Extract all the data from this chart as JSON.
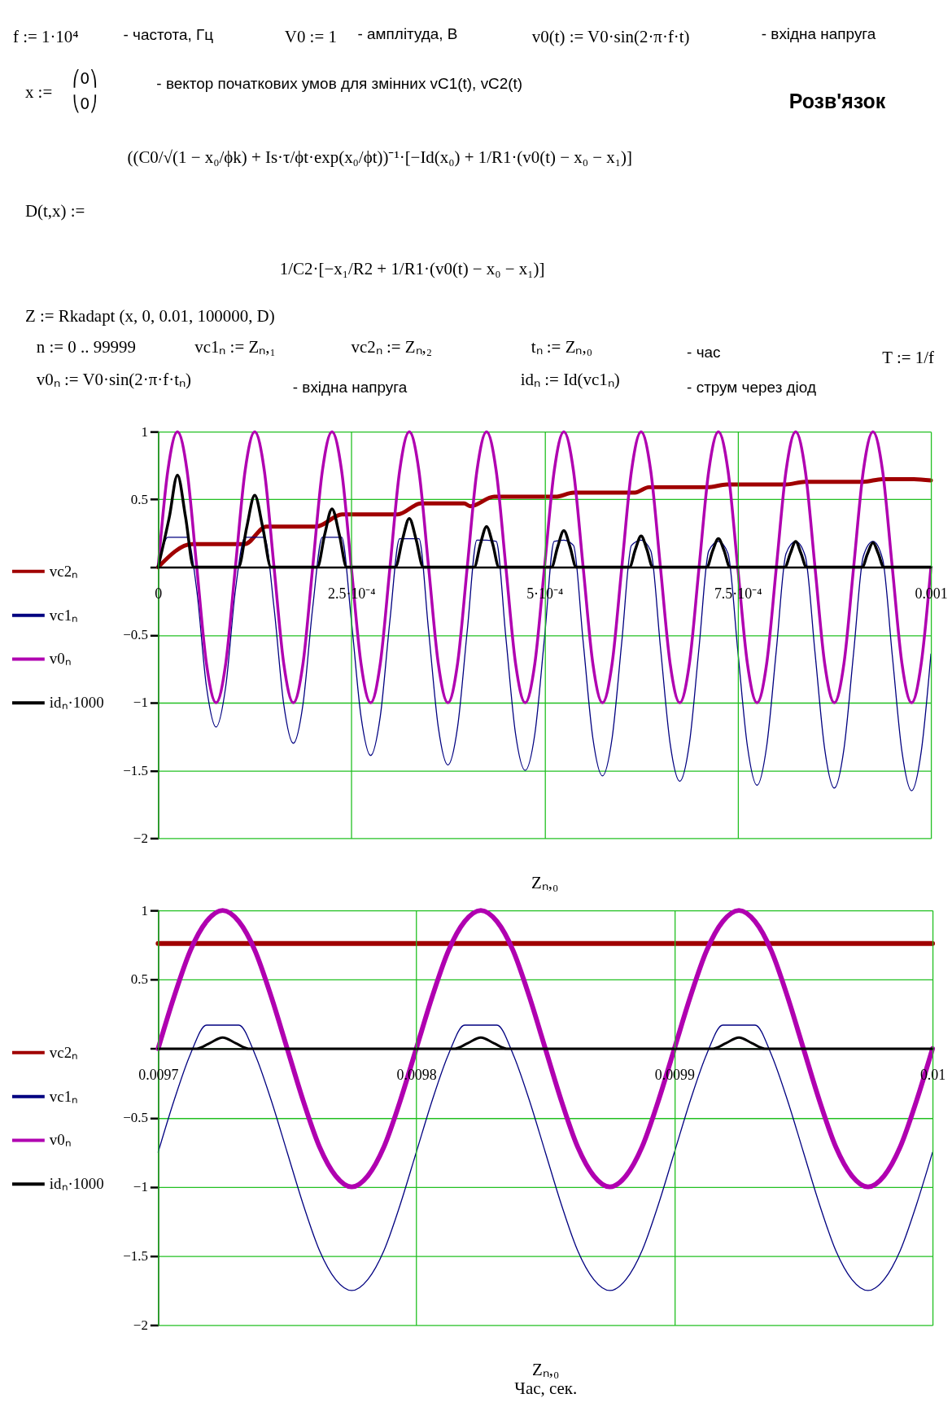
{
  "chart_data": [
    {
      "type": "line",
      "annotations": [
        "f := 1·10⁴",
        "- частота, Гц",
        "V0 := 1",
        "- амплітуда, В",
        "v0(t) := V0·sin(2·π·f·t)",
        "- вхідна напруга",
        "x :=",
        "⎛0⎞",
        "⎝0⎠",
        "- вектор початкових умов для змінних vC1(t), vC2(t)",
        "Розв'язок",
        "D(t,x) :=",
        "((C0/√(1 − x₀/ϕk) + Is·τ/ϕt·exp(x₀/ϕt))⁻¹·[−Id(x₀) + 1/R1·(v0(t) − x₀ − x₁)]",
        "1/C2·[−x₁/R2 + 1/R1·(v0(t) − x₀ − x₁)]",
        "Z := Rkadapt (x, 0, 0.01, 100000, D)",
        "n := 0 .. 99999",
        "vc1ₙ := Zₙ,₁",
        "vc2ₙ := Zₙ,₂",
        "tₙ := Zₙ,₀",
        "- час",
        "T := 1/f",
        "v0ₙ := V0·sin(2·π·f·tₙ)",
        "- вхідна напруга",
        "idₙ := Id(vc1ₙ)",
        "- струм через діод"
      ],
      "xlabel": "Zₙ,₀",
      "x": [
        0,
        1.25e-05,
        2.5e-05,
        3.75e-05,
        5e-05,
        6.25e-05,
        7.5e-05,
        8.75e-05,
        0.0001,
        0.0001125,
        0.000125,
        0.0001375,
        0.00015,
        0.0001625,
        0.000175,
        0.0001875,
        0.0002,
        0.0002125,
        0.000225,
        0.0002375,
        0.00025,
        0.0002625,
        0.000275,
        0.0002875,
        0.0003,
        0.0003125,
        0.000325,
        0.0003375,
        0.00035,
        0.0003625,
        0.000375,
        0.0003875,
        0.0004,
        0.0004125,
        0.000425,
        0.0004375,
        0.00045,
        0.0004625,
        0.000475,
        0.0004875,
        0.0005,
        0.0005125,
        0.000525,
        0.0005375,
        0.00055,
        0.0005625,
        0.000575,
        0.0005875,
        0.0006,
        0.0006125,
        0.000625,
        0.0006375,
        0.00065,
        0.0006625,
        0.000675,
        0.0006875,
        0.0007,
        0.0007125,
        0.000725,
        0.0007375,
        0.00075,
        0.0007625,
        0.000775,
        0.0007875,
        0.0008,
        0.0008125,
        0.000825,
        0.0008375,
        0.00085,
        0.0008625,
        0.000875,
        0.0008875,
        0.0009,
        0.0009125,
        0.000925,
        0.0009375,
        0.00095,
        0.0009625,
        0.000975,
        0.0009875,
        0.001
      ],
      "series": [
        {
          "name": "vc2ₙ",
          "color": "#a00000",
          "x": [
            0,
            4.4e-05,
            0.000112,
            0.00014,
            0.000205,
            0.000238,
            0.00031,
            0.00034,
            0.000396,
            0.000404,
            0.000435,
            0.000514,
            0.000538,
            0.000617,
            0.000635,
            0.000711,
            0.000736,
            0.000812,
            0.000837,
            0.000913,
            0.000937,
            0.000978,
            0.001
          ],
          "values": [
            0,
            0.17,
            0.17,
            0.3,
            0.3,
            0.39,
            0.39,
            0.47,
            0.47,
            0.45,
            0.52,
            0.52,
            0.55,
            0.55,
            0.59,
            0.59,
            0.61,
            0.61,
            0.63,
            0.63,
            0.65,
            0.65,
            0.64
          ]
        },
        {
          "name": "vc1ₙ",
          "color": "#000080",
          "values": [
            0,
            0.22,
            0.22,
            0.22,
            -0.17,
            -0.88,
            -1.18,
            -0.88,
            -0.17,
            0.22,
            0.22,
            0.22,
            -0.3,
            -1.01,
            -1.3,
            -1.01,
            -0.3,
            0.22,
            0.22,
            0.22,
            -0.39,
            -1.1,
            -1.39,
            -1.1,
            -0.39,
            0.21,
            0.21,
            0.21,
            -0.47,
            -1.18,
            -1.46,
            -1.18,
            -0.47,
            0.2,
            0.2,
            0.19,
            -0.52,
            -1.23,
            -1.5,
            -1.23,
            -0.52,
            0.19,
            0.2,
            0.16,
            -0.55,
            -1.26,
            -1.54,
            -1.26,
            -0.55,
            0.16,
            0.2,
            0.12,
            -0.59,
            -1.3,
            -1.58,
            -1.3,
            -0.59,
            0.12,
            0.19,
            0.1,
            -0.61,
            -1.32,
            -1.61,
            -1.32,
            -0.61,
            0.1,
            0.19,
            0.08,
            -0.63,
            -1.34,
            -1.63,
            -1.34,
            -0.63,
            0.08,
            0.19,
            0.06,
            -0.65,
            -1.36,
            -1.65,
            -1.36,
            -0.64
          ]
        },
        {
          "name": "v0ₙ",
          "color": "#b000b0",
          "values": [
            0,
            0.71,
            1,
            0.71,
            0,
            -0.71,
            -1,
            -0.71,
            0,
            0.71,
            1,
            0.71,
            0,
            -0.71,
            -1,
            -0.71,
            0,
            0.71,
            1,
            0.71,
            0,
            -0.71,
            -1,
            -0.71,
            0,
            0.71,
            1,
            0.71,
            0,
            -0.71,
            -1,
            -0.71,
            0,
            0.71,
            1,
            0.71,
            0,
            -0.71,
            -1,
            -0.71,
            0,
            0.71,
            1,
            0.71,
            0,
            -0.71,
            -1,
            -0.71,
            0,
            0.71,
            1,
            0.71,
            0,
            -0.71,
            -1,
            -0.71,
            0,
            0.71,
            1,
            0.71,
            0,
            -0.71,
            -1,
            -0.71,
            0,
            0.71,
            1,
            0.71,
            0,
            -0.71,
            -1,
            -0.71,
            0,
            0.71,
            1,
            0.71,
            0,
            -0.71,
            -1,
            -0.71,
            0
          ]
        },
        {
          "name": "idₙ·1000",
          "color": "#000000",
          "x": [
            0,
            1.45e-05,
            2.5e-05,
            3.55e-05,
            4.6e-05,
            0.000104,
            0.0001145,
            0.000125,
            0.0001355,
            0.000146,
            0.000206,
            0.0002155,
            0.000225,
            0.0002345,
            0.000244,
            0.000307,
            0.000316,
            0.000325,
            0.000334,
            0.000343,
            0.000409,
            0.000417,
            0.000425,
            0.000433,
            0.000441,
            0.000509,
            0.000517,
            0.000525,
            0.000533,
            0.000541,
            0.00061,
            0.0006175,
            0.000625,
            0.0006325,
            0.00064,
            0.00071,
            0.0007175,
            0.000725,
            0.0007325,
            0.00074,
            0.000811,
            0.000818,
            0.000825,
            0.000832,
            0.000839,
            0.000911,
            0.000918,
            0.000925,
            0.000932,
            0.000939,
            0.001
          ],
          "values": [
            0,
            0.37,
            0.68,
            0.37,
            0,
            0,
            0.29,
            0.53,
            0.29,
            0,
            0,
            0.24,
            0.43,
            0.24,
            0,
            0,
            0.2,
            0.36,
            0.2,
            0,
            0,
            0.17,
            0.3,
            0.17,
            0,
            0,
            0.15,
            0.27,
            0.15,
            0,
            0,
            0.13,
            0.23,
            0.13,
            0,
            0,
            0.12,
            0.21,
            0.12,
            0,
            0,
            0.1,
            0.19,
            0.1,
            0,
            0,
            0.1,
            0.18,
            0.1,
            0,
            0
          ]
        }
      ],
      "xlim": [
        0,
        0.001
      ],
      "ylim": [
        -2,
        1
      ],
      "xticks": [
        0,
        {
          "value": 0.00025,
          "label": "2.5·10⁻⁴"
        },
        {
          "value": 0.0005,
          "label": "5·10⁻⁴"
        },
        {
          "value": 0.00075,
          "label": "7.5·10⁻⁴"
        },
        0.001
      ],
      "yticks": [
        -2,
        -1.5,
        -1,
        -0.5,
        {
          "value": 0,
          "label": null
        },
        0.5,
        1
      ],
      "grid": true,
      "legend": "left"
    },
    {
      "type": "line",
      "xlabel": "Zₙ,₀\nЧас, сек.",
      "x": [
        0.0097,
        0.00970625,
        0.0097125,
        0.00971875,
        0.009725,
        0.00973125,
        0.0097375,
        0.00974375,
        0.00975,
        0.00975625,
        0.0097625,
        0.00976875,
        0.009775,
        0.00978125,
        0.0097875,
        0.00979375,
        0.0098,
        0.00980625,
        0.0098125,
        0.00981875,
        0.009825,
        0.00983125,
        0.0098375,
        0.00984375,
        0.00985,
        0.00985625,
        0.0098625,
        0.00986875,
        0.009875,
        0.00988125,
        0.0098875,
        0.00989375,
        0.0099,
        0.00990625,
        0.0099125,
        0.00991875,
        0.009925,
        0.00993125,
        0.0099375,
        0.00994375,
        0.00995,
        0.00995625,
        0.0099625,
        0.00996875,
        0.009975,
        0.00998125,
        0.0099875,
        0.00999375,
        0.01
      ],
      "series": [
        {
          "name": "vc2ₙ",
          "color": "#a00000",
          "x": [
            0.0097,
            0.01
          ],
          "values": [
            0.76,
            0.76
          ]
        },
        {
          "name": "vc1ₙ",
          "color": "#000080",
          "values": [
            -0.75,
            -0.37,
            -0.04,
            0.17,
            0.17,
            0.17,
            -0.04,
            -0.37,
            -0.75,
            -1.13,
            -1.46,
            -1.67,
            -1.75,
            -1.67,
            -1.46,
            -1.13,
            -0.75,
            -0.37,
            -0.04,
            0.17,
            0.17,
            0.17,
            -0.04,
            -0.37,
            -0.75,
            -1.13,
            -1.46,
            -1.67,
            -1.75,
            -1.67,
            -1.46,
            -1.13,
            -0.75,
            -0.37,
            -0.04,
            0.17,
            0.17,
            0.17,
            -0.04,
            -0.37,
            -0.75,
            -1.13,
            -1.46,
            -1.67,
            -1.75,
            -1.67,
            -1.46,
            -1.13,
            -0.75
          ]
        },
        {
          "name": "v0ₙ",
          "color": "#b000b0",
          "values": [
            0,
            0.38,
            0.71,
            0.92,
            1,
            0.92,
            0.71,
            0.38,
            0,
            -0.38,
            -0.71,
            -0.92,
            -1,
            -0.92,
            -0.71,
            -0.38,
            0,
            0.38,
            0.71,
            0.92,
            1,
            0.92,
            0.71,
            0.38,
            0,
            -0.38,
            -0.71,
            -0.92,
            -1,
            -0.92,
            -0.71,
            -0.38,
            0,
            0.38,
            0.71,
            0.92,
            1,
            0.92,
            0.71,
            0.38,
            0,
            -0.38,
            -0.71,
            -0.92,
            -1,
            -0.92,
            -0.71,
            -0.38,
            0
          ]
        },
        {
          "name": "idₙ·1000",
          "color": "#000000",
          "x": [
            0.0097,
            0.009715,
            0.00972,
            0.009725,
            0.00973,
            0.009735,
            0.009815,
            0.00982,
            0.009825,
            0.00983,
            0.009835,
            0.009915,
            0.00992,
            0.009925,
            0.00993,
            0.009935,
            0.01
          ],
          "values": [
            0,
            0,
            0.04,
            0.08,
            0.04,
            0,
            0,
            0.04,
            0.08,
            0.04,
            0,
            0,
            0.04,
            0.08,
            0.04,
            0,
            0
          ]
        }
      ],
      "xlim": [
        0.0097,
        0.01
      ],
      "ylim": [
        -2,
        1
      ],
      "xticks": [
        0.0097,
        0.0098,
        0.0099,
        0.01
      ],
      "yticks": [
        -2,
        -1.5,
        -1,
        -0.5,
        {
          "value": 0,
          "label": null
        },
        0.5,
        1
      ],
      "grid": true,
      "legend": "left"
    }
  ]
}
